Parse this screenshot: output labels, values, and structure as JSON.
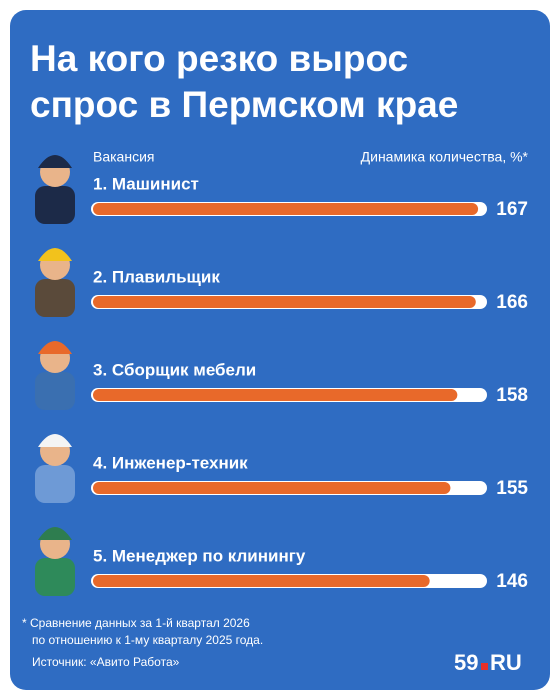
{
  "chart_data": {
    "type": "bar",
    "orientation": "horizontal",
    "title": "На кого резко вырос спрос в Пермском крае",
    "category_header": "Вакансия",
    "value_header": "Динамика количества, %*",
    "categories": [
      "1. Машинист",
      "2. Плавильщик",
      "3. Сборщик мебели",
      "4. Инженер-техник",
      "5. Менеджер по клинингу"
    ],
    "values": [
      167,
      166,
      158,
      155,
      146
    ],
    "color": "#e8692a",
    "track_color": "#ffffff",
    "xlim": [
      0,
      170
    ]
  },
  "footnote": [
    "* Сравнение данных за 1-й квартал 2026",
    "по отношению к 1-му кварталу 2025 года."
  ],
  "source": "Источник: «Авито Работа»",
  "logo": {
    "number": "59",
    "domain": "RU"
  }
}
